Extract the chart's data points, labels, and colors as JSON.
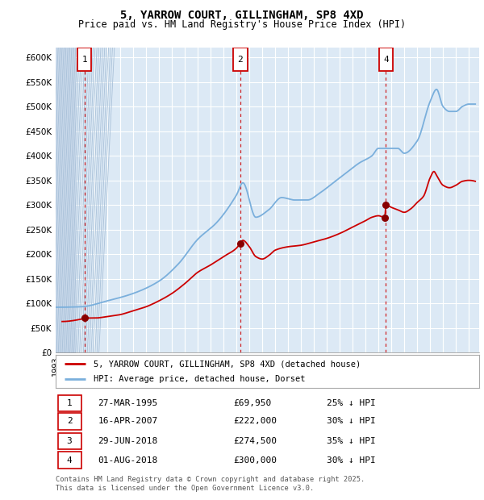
{
  "title": "5, YARROW COURT, GILLINGHAM, SP8 4XD",
  "subtitle": "Price paid vs. HM Land Registry's House Price Index (HPI)",
  "legend_line1": "5, YARROW COURT, GILLINGHAM, SP8 4XD (detached house)",
  "legend_line2": "HPI: Average price, detached house, Dorset",
  "footer1": "Contains HM Land Registry data © Crown copyright and database right 2025.",
  "footer2": "This data is licensed under the Open Government Licence v3.0.",
  "transactions": [
    {
      "num": 1,
      "date": "27-MAR-1995",
      "price": 69950,
      "pct": "25% ↓ HPI",
      "year": 1995.23
    },
    {
      "num": 2,
      "date": "16-APR-2007",
      "price": 222000,
      "pct": "30% ↓ HPI",
      "year": 2007.29
    },
    {
      "num": 3,
      "date": "29-JUN-2018",
      "price": 274500,
      "pct": "35% ↓ HPI",
      "year": 2018.49
    },
    {
      "num": 4,
      "date": "01-AUG-2018",
      "price": 300000,
      "pct": "30% ↓ HPI",
      "year": 2018.58
    }
  ],
  "hpi_color": "#7aafdc",
  "price_color": "#cc0000",
  "marker_color": "#880000",
  "vline_color": "#cc0000",
  "plot_bg_color": "#dce9f5",
  "grid_color": "#ffffff",
  "ylim": [
    0,
    620000
  ],
  "xlim_start": 1993.0,
  "xlim_end": 2025.8,
  "yticks": [
    0,
    50000,
    100000,
    150000,
    200000,
    250000,
    300000,
    350000,
    400000,
    450000,
    500000,
    550000,
    600000
  ],
  "ytick_labels": [
    "£0",
    "£50K",
    "£100K",
    "£150K",
    "£200K",
    "£250K",
    "£300K",
    "£350K",
    "£400K",
    "£450K",
    "£500K",
    "£550K",
    "£600K"
  ],
  "hpi_key_points": [
    [
      1993.0,
      92000
    ],
    [
      1995.0,
      93000
    ],
    [
      1997.0,
      105000
    ],
    [
      1999.0,
      120000
    ],
    [
      2001.0,
      145000
    ],
    [
      2002.5,
      180000
    ],
    [
      2004.0,
      230000
    ],
    [
      2005.5,
      265000
    ],
    [
      2007.0,
      320000
    ],
    [
      2007.5,
      345000
    ],
    [
      2008.5,
      275000
    ],
    [
      2009.5,
      290000
    ],
    [
      2010.5,
      315000
    ],
    [
      2011.5,
      310000
    ],
    [
      2012.5,
      310000
    ],
    [
      2013.5,
      325000
    ],
    [
      2014.5,
      345000
    ],
    [
      2015.5,
      365000
    ],
    [
      2016.5,
      385000
    ],
    [
      2017.5,
      400000
    ],
    [
      2018.0,
      415000
    ],
    [
      2018.5,
      415000
    ],
    [
      2019.5,
      415000
    ],
    [
      2020.0,
      405000
    ],
    [
      2021.0,
      430000
    ],
    [
      2022.0,
      510000
    ],
    [
      2022.5,
      535000
    ],
    [
      2023.0,
      500000
    ],
    [
      2023.5,
      490000
    ],
    [
      2024.0,
      490000
    ],
    [
      2024.5,
      500000
    ],
    [
      2025.0,
      505000
    ],
    [
      2025.5,
      505000
    ]
  ],
  "price_key_points": [
    [
      1993.5,
      63000
    ],
    [
      1995.0,
      68000
    ],
    [
      1995.23,
      69950
    ],
    [
      1996.0,
      70000
    ],
    [
      1997.0,
      73000
    ],
    [
      1998.0,
      77000
    ],
    [
      1999.0,
      85000
    ],
    [
      2000.0,
      93000
    ],
    [
      2001.0,
      105000
    ],
    [
      2002.0,
      120000
    ],
    [
      2003.0,
      140000
    ],
    [
      2004.0,
      163000
    ],
    [
      2005.0,
      178000
    ],
    [
      2006.0,
      195000
    ],
    [
      2007.0,
      212000
    ],
    [
      2007.29,
      222000
    ],
    [
      2007.5,
      228000
    ],
    [
      2008.0,
      215000
    ],
    [
      2008.5,
      195000
    ],
    [
      2009.0,
      190000
    ],
    [
      2009.5,
      197000
    ],
    [
      2010.0,
      208000
    ],
    [
      2011.0,
      215000
    ],
    [
      2012.0,
      218000
    ],
    [
      2013.0,
      225000
    ],
    [
      2014.0,
      232000
    ],
    [
      2015.0,
      242000
    ],
    [
      2016.0,
      255000
    ],
    [
      2017.0,
      268000
    ],
    [
      2017.5,
      275000
    ],
    [
      2018.0,
      278000
    ],
    [
      2018.49,
      274500
    ],
    [
      2018.58,
      300000
    ],
    [
      2019.0,
      295000
    ],
    [
      2019.5,
      290000
    ],
    [
      2020.0,
      285000
    ],
    [
      2020.5,
      292000
    ],
    [
      2021.0,
      305000
    ],
    [
      2021.5,
      318000
    ],
    [
      2022.0,
      355000
    ],
    [
      2022.3,
      368000
    ],
    [
      2022.5,
      360000
    ],
    [
      2023.0,
      340000
    ],
    [
      2023.5,
      335000
    ],
    [
      2024.0,
      340000
    ],
    [
      2024.5,
      348000
    ],
    [
      2025.0,
      350000
    ],
    [
      2025.5,
      348000
    ]
  ]
}
